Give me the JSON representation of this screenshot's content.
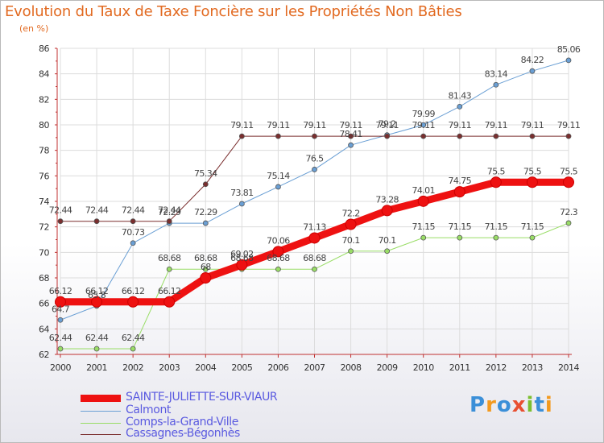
{
  "title": "Evolution du Taux de Taxe Foncière sur les Propriétés Non Bâties",
  "unit_label": "(en %)",
  "logo": {
    "text": "Proxiti",
    "colors": [
      "#3b8fd8",
      "#f39a1f",
      "#3b8fd8",
      "#e84f31",
      "#7bbf2f",
      "#3b8fd8",
      "#f39a1f"
    ]
  },
  "chart_data": {
    "type": "line",
    "title": "Evolution du Taux de Taxe Foncière sur les Propriétés Non Bâties",
    "ylabel": "(en %)",
    "xlabel": "",
    "x": [
      "2000",
      "2001",
      "2002",
      "2003",
      "2004",
      "2005",
      "2006",
      "2007",
      "2008",
      "2009",
      "2010",
      "2011",
      "2012",
      "2013",
      "2014"
    ],
    "ylim": [
      62,
      86
    ],
    "yticks": [
      "62",
      "64",
      "66",
      "68",
      "70",
      "72",
      "74",
      "76",
      "78",
      "80",
      "82",
      "84",
      "86"
    ],
    "grid": true,
    "series": [
      {
        "name": "SAINTE-JULIETTE-SUR-VIAUR",
        "color": "#ee1111",
        "width": 9,
        "values": [
          66.12,
          66.12,
          66.12,
          66.12,
          68,
          69.02,
          70.06,
          71.13,
          72.2,
          73.28,
          74.01,
          74.75,
          75.5,
          75.5,
          75.5
        ],
        "labels": [
          "66.12",
          "66.12",
          "66.12",
          "66.12",
          "68",
          "69.02",
          "70.06",
          "71.13",
          "72.2",
          "73.28",
          "74.01",
          "74.75",
          "75.5",
          "75.5",
          "75.5"
        ]
      },
      {
        "name": "Calmont",
        "color": "#6a9fd4",
        "width": 1,
        "values": [
          64.7,
          65.8,
          70.73,
          72.29,
          72.29,
          73.81,
          75.14,
          76.5,
          78.41,
          79.2,
          79.99,
          81.43,
          83.14,
          84.22,
          85.06
        ],
        "labels": [
          "64.7",
          "65.8",
          "70.73",
          "72.29",
          "72.29",
          "73.81",
          "75.14",
          "76.5",
          "78.41",
          "79.2",
          "79.99",
          "81.43",
          "83.14",
          "84.22",
          "85.06"
        ]
      },
      {
        "name": "Comps-la-Grand-Ville",
        "color": "#99dd66",
        "width": 1,
        "values": [
          62.44,
          62.44,
          62.44,
          68.68,
          68.68,
          68.68,
          68.68,
          68.68,
          70.1,
          70.1,
          71.15,
          71.15,
          71.15,
          71.15,
          72.3
        ],
        "labels": [
          "62.44",
          "62.44",
          "62.44",
          "68.68",
          "68.68",
          "68.68",
          "68.68",
          "68.68",
          "70.1",
          "70.1",
          "71.15",
          "71.15",
          "71.15",
          "71.15",
          "72.3"
        ]
      },
      {
        "name": "Cassagnes-Bégonhès",
        "color": "#7a2e2e",
        "width": 1,
        "values": [
          72.44,
          72.44,
          72.44,
          72.44,
          75.34,
          79.11,
          79.11,
          79.11,
          79.11,
          79.11,
          79.11,
          79.11,
          79.11,
          79.11,
          79.11
        ],
        "labels": [
          "72.44",
          "72.44",
          "72.44",
          "72.44",
          "75.34",
          "79.11",
          "79.11",
          "79.11",
          "79.11",
          "79.11",
          "79.11",
          "79.11",
          "79.11",
          "79.11",
          "79.11"
        ]
      }
    ]
  }
}
